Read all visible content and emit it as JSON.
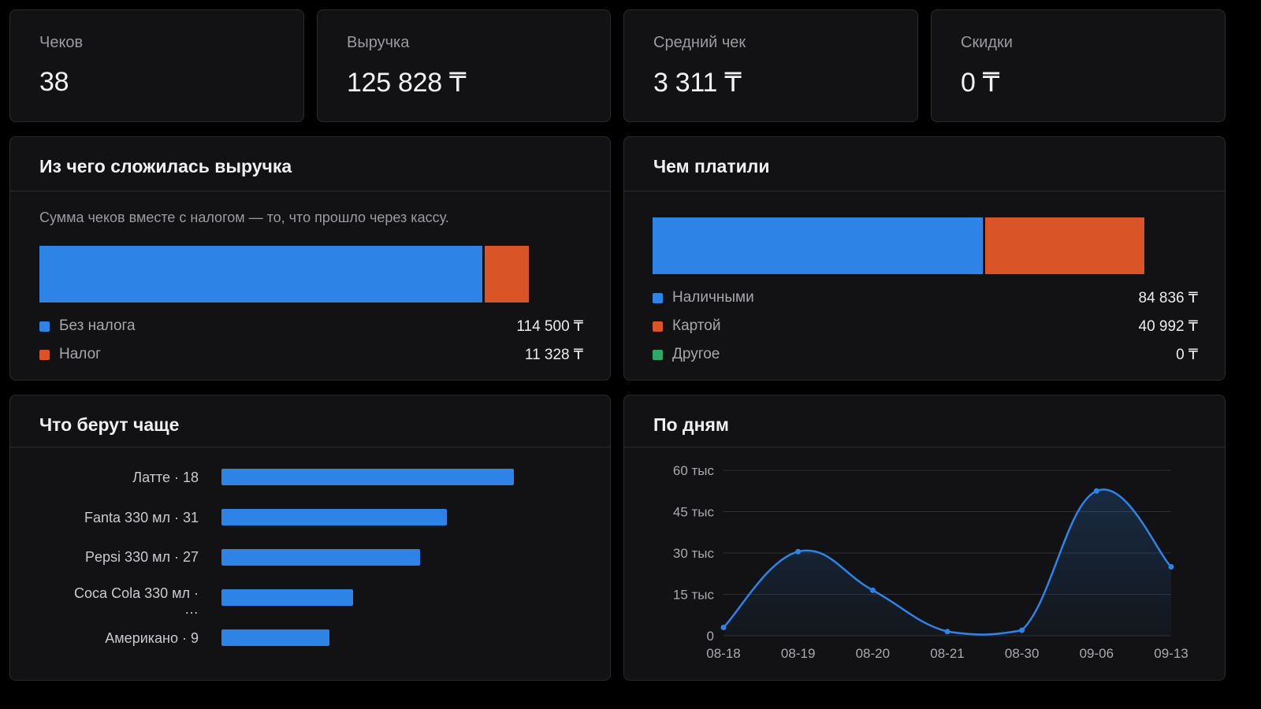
{
  "colors": {
    "blue": "#2e83e6",
    "orange": "#d95427",
    "green": "#2da866",
    "background": "#000000",
    "card": "#121214"
  },
  "currency_symbol": "₸",
  "stats": [
    {
      "label": "Чеков",
      "value": "38"
    },
    {
      "label": "Выручка",
      "value": "125 828 ₸"
    },
    {
      "label": "Средний чек",
      "value": "3 311 ₸"
    },
    {
      "label": "Скидки",
      "value": "0 ₸"
    }
  ],
  "revenue": {
    "title": "Из чего сложилась выручка",
    "note": "Сумма чеков вместе с налогом — то, что прошло через кассу.",
    "items": [
      {
        "label": "Без налога",
        "value": "114 500 ₸",
        "amount": 114500,
        "color": "blue"
      },
      {
        "label": "Налог",
        "value": "11 328 ₸",
        "amount": 11328,
        "color": "orange"
      }
    ]
  },
  "payments": {
    "title": "Чем платили",
    "items": [
      {
        "label": "Наличными",
        "value": "84 836 ₸",
        "amount": 84836,
        "color": "blue"
      },
      {
        "label": "Картой",
        "value": "40 992 ₸",
        "amount": 40992,
        "color": "orange"
      },
      {
        "label": "Другое",
        "value": "0 ₸",
        "amount": 0,
        "color": "green"
      }
    ]
  },
  "popular": {
    "title": "Что берут чаще",
    "items": [
      {
        "label": "Латте · 18",
        "sales_share": 1.0
      },
      {
        "label": "Fanta 330 мл · 31",
        "sales_share": 0.77
      },
      {
        "label": "Pepsi 330 мл · 27",
        "sales_share": 0.68
      },
      {
        "label": "Coca Cola 330 мл · …",
        "sales_share": 0.45
      },
      {
        "label": "Американо · 9",
        "sales_share": 0.37
      }
    ]
  },
  "daily": {
    "title": "По дням"
  },
  "chart_data": {
    "type": "area",
    "title": "По дням",
    "xlabel": "",
    "ylabel": "",
    "categories": [
      "08-18",
      "08-19",
      "08-20",
      "08-21",
      "08-30",
      "09-06",
      "09-13"
    ],
    "values": [
      3000,
      30500,
      16500,
      1500,
      2000,
      52500,
      25000
    ],
    "ylim": [
      0,
      60000
    ],
    "yticks": [
      0,
      15000,
      30000,
      45000,
      60000
    ],
    "ytick_labels": [
      "0",
      "15 тыс",
      "30 тыс",
      "45 тыс",
      "60 тыс"
    ],
    "grid": true,
    "smooth": true,
    "color": "#2e83e6"
  }
}
